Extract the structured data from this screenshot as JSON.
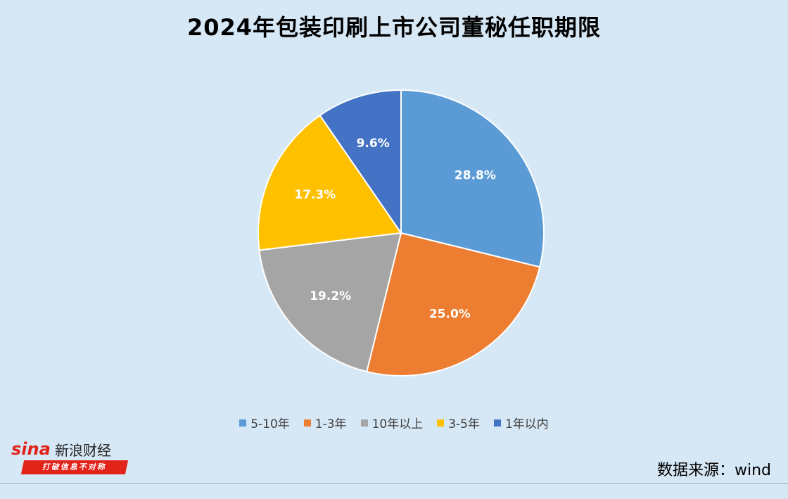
{
  "title": "2024年包装印刷上市公司董秘任职期限",
  "source": "数据来源：wind",
  "brand": {
    "logo_text": "sina",
    "name": "新浪财经",
    "slogan": "打破信息不对称",
    "logo_icon": "sina-eye-logo"
  },
  "chart_data": {
    "type": "pie",
    "title": "2024年包装印刷上市公司董秘任职期限",
    "legend_position": "bottom",
    "slices": [
      {
        "name": "5-10年",
        "value": 28.8,
        "label": "28.8%",
        "color": "#5b9bd5"
      },
      {
        "name": "1-3年",
        "value": 25.0,
        "label": "25.0%",
        "color": "#ed7d31"
      },
      {
        "name": "10年以上",
        "value": 19.2,
        "label": "19.2%",
        "color": "#a5a5a5"
      },
      {
        "name": "3-5年",
        "value": 17.3,
        "label": "17.3%",
        "color": "#ffc000"
      },
      {
        "name": "1年以内",
        "value": 9.6,
        "label": "9.6%",
        "color": "#4472c4"
      }
    ]
  }
}
